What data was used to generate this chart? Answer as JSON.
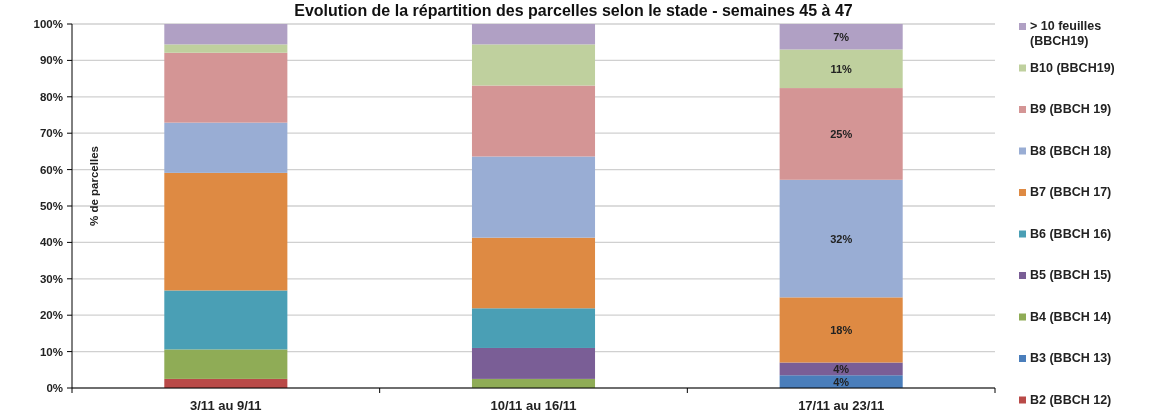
{
  "chart_data": {
    "type": "bar",
    "title": "Evolution de la répartition des parcelles selon le stade - semaines 45 à 47",
    "ylabel": "% de parcelles",
    "categories": [
      "3/11 au 9/11",
      "10/11 au 16/11",
      "17/11 au 23/11"
    ],
    "stacked": true,
    "ylim": [
      0,
      100
    ],
    "yticks": [
      {
        "value": 0,
        "label": "0%"
      },
      {
        "value": 10,
        "label": "10%"
      },
      {
        "value": 20,
        "label": "20%"
      },
      {
        "value": 30,
        "label": "30%"
      },
      {
        "value": 40,
        "label": "40%"
      },
      {
        "value": 50,
        "label": "50%"
      },
      {
        "value": 60,
        "label": "60%"
      },
      {
        "value": 70,
        "label": "70%"
      },
      {
        "value": 80,
        "label": "80%"
      },
      {
        "value": 90,
        "label": "90%"
      },
      {
        "value": 100,
        "label": "100%"
      }
    ],
    "grid": "y",
    "legend": "right",
    "series": [
      {
        "name": "B2 (BBCH 12)",
        "color": "#b94a48",
        "values": [
          2.5,
          0,
          0
        ]
      },
      {
        "name": "B3 (BBCH 13)",
        "color": "#4a7ebb",
        "values": [
          0,
          0,
          3.5
        ],
        "value_labels": [
          null,
          null,
          "4%"
        ]
      },
      {
        "name": "B4 (BBCH 14)",
        "color": "#8fac56",
        "values": [
          8.1,
          2.5,
          0
        ]
      },
      {
        "name": "B5 (BBCH 15)",
        "color": "#7a5e96",
        "values": [
          0,
          8.5,
          3.5
        ],
        "value_labels": [
          null,
          null,
          "4%"
        ]
      },
      {
        "name": "B6 (BBCH 16)",
        "color": "#4a9fb5",
        "values": [
          16.2,
          10.9,
          0
        ]
      },
      {
        "name": "B7 (BBCH 17)",
        "color": "#de8a43",
        "values": [
          32.3,
          19.4,
          17.9
        ],
        "value_labels": [
          null,
          null,
          "18%"
        ]
      },
      {
        "name": "B8 (BBCH 18)",
        "color": "#99add4",
        "values": [
          13.8,
          22.3,
          32.3
        ],
        "value_labels": [
          null,
          null,
          "32%"
        ]
      },
      {
        "name": "B9 (BBCH 19)",
        "color": "#d49595",
        "values": [
          19.2,
          19.5,
          25.2
        ],
        "value_labels": [
          null,
          null,
          "25%"
        ]
      },
      {
        "name": "B10 (BBCH19)",
        "color": "#bfd09e",
        "values": [
          2.3,
          11.3,
          10.6
        ],
        "value_labels": [
          null,
          null,
          "11%"
        ]
      },
      {
        "name": "> 10 feuilles (BBCH19)",
        "color": "#b0a0c4",
        "values": [
          5.6,
          5.6,
          7.0
        ],
        "value_labels": [
          null,
          null,
          "7%"
        ]
      }
    ]
  }
}
